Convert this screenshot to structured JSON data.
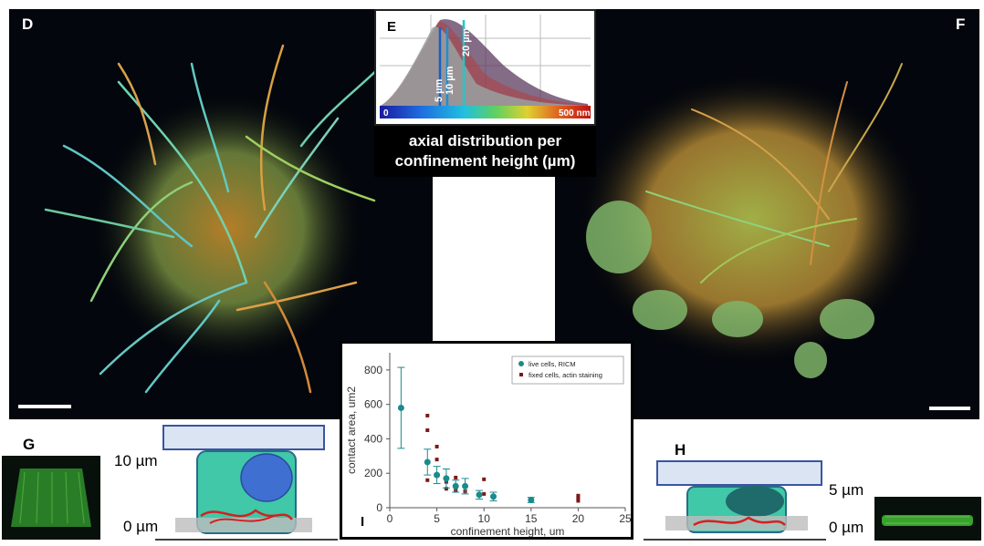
{
  "panels": {
    "D": {
      "label": "D"
    },
    "E": {
      "label": "E",
      "axis_min_label": "0",
      "axis_max_label": "500 nm",
      "height_labels": [
        "5 µm",
        "10 µm",
        "20 µm"
      ],
      "caption_line1": "axial distribution per",
      "caption_line2": "confinement height (µm)"
    },
    "F": {
      "label": "F"
    },
    "G": {
      "label": "G",
      "top_label": "10 µm",
      "bottom_label": "0 µm"
    },
    "H": {
      "label": "H",
      "top_label": "5 µm",
      "bottom_label": "0 µm"
    },
    "I": {
      "label": "I"
    }
  },
  "chart_data": {
    "type": "scatter",
    "xlabel": "confinement height, um",
    "ylabel": "contact area, um2",
    "xlim": [
      0,
      25
    ],
    "ylim": [
      0,
      900
    ],
    "xticks": [
      0,
      5,
      10,
      15,
      20,
      25
    ],
    "yticks": [
      0,
      200,
      400,
      600,
      800
    ],
    "legend_position": "top-right",
    "series": [
      {
        "name": "live cells, RICM",
        "color": "#1b8a8c",
        "points": [
          {
            "x": 1.2,
            "y": 580,
            "err": 235
          },
          {
            "x": 4,
            "y": 265,
            "err": 75
          },
          {
            "x": 5,
            "y": 190,
            "err": 50
          },
          {
            "x": 6,
            "y": 170,
            "err": 55
          },
          {
            "x": 7,
            "y": 125,
            "err": 35
          },
          {
            "x": 8,
            "y": 125,
            "err": 45
          },
          {
            "x": 9.5,
            "y": 75,
            "err": 25
          },
          {
            "x": 11,
            "y": 65,
            "err": 25
          },
          {
            "x": 15,
            "y": 45,
            "err": 15
          }
        ]
      },
      {
        "name": "fixed cells, actin staining",
        "color": "#7a1a1a",
        "points": [
          {
            "x": 4,
            "y": 535
          },
          {
            "x": 4,
            "y": 450
          },
          {
            "x": 4,
            "y": 265
          },
          {
            "x": 4,
            "y": 160
          },
          {
            "x": 5,
            "y": 355
          },
          {
            "x": 5,
            "y": 280
          },
          {
            "x": 5,
            "y": 190
          },
          {
            "x": 6,
            "y": 150
          },
          {
            "x": 6,
            "y": 110
          },
          {
            "x": 7,
            "y": 175
          },
          {
            "x": 7,
            "y": 100
          },
          {
            "x": 8,
            "y": 120
          },
          {
            "x": 8,
            "y": 95
          },
          {
            "x": 10,
            "y": 165
          },
          {
            "x": 10,
            "y": 80
          },
          {
            "x": 20,
            "y": 70
          },
          {
            "x": 20,
            "y": 55
          },
          {
            "x": 20,
            "y": 40
          }
        ]
      }
    ]
  }
}
